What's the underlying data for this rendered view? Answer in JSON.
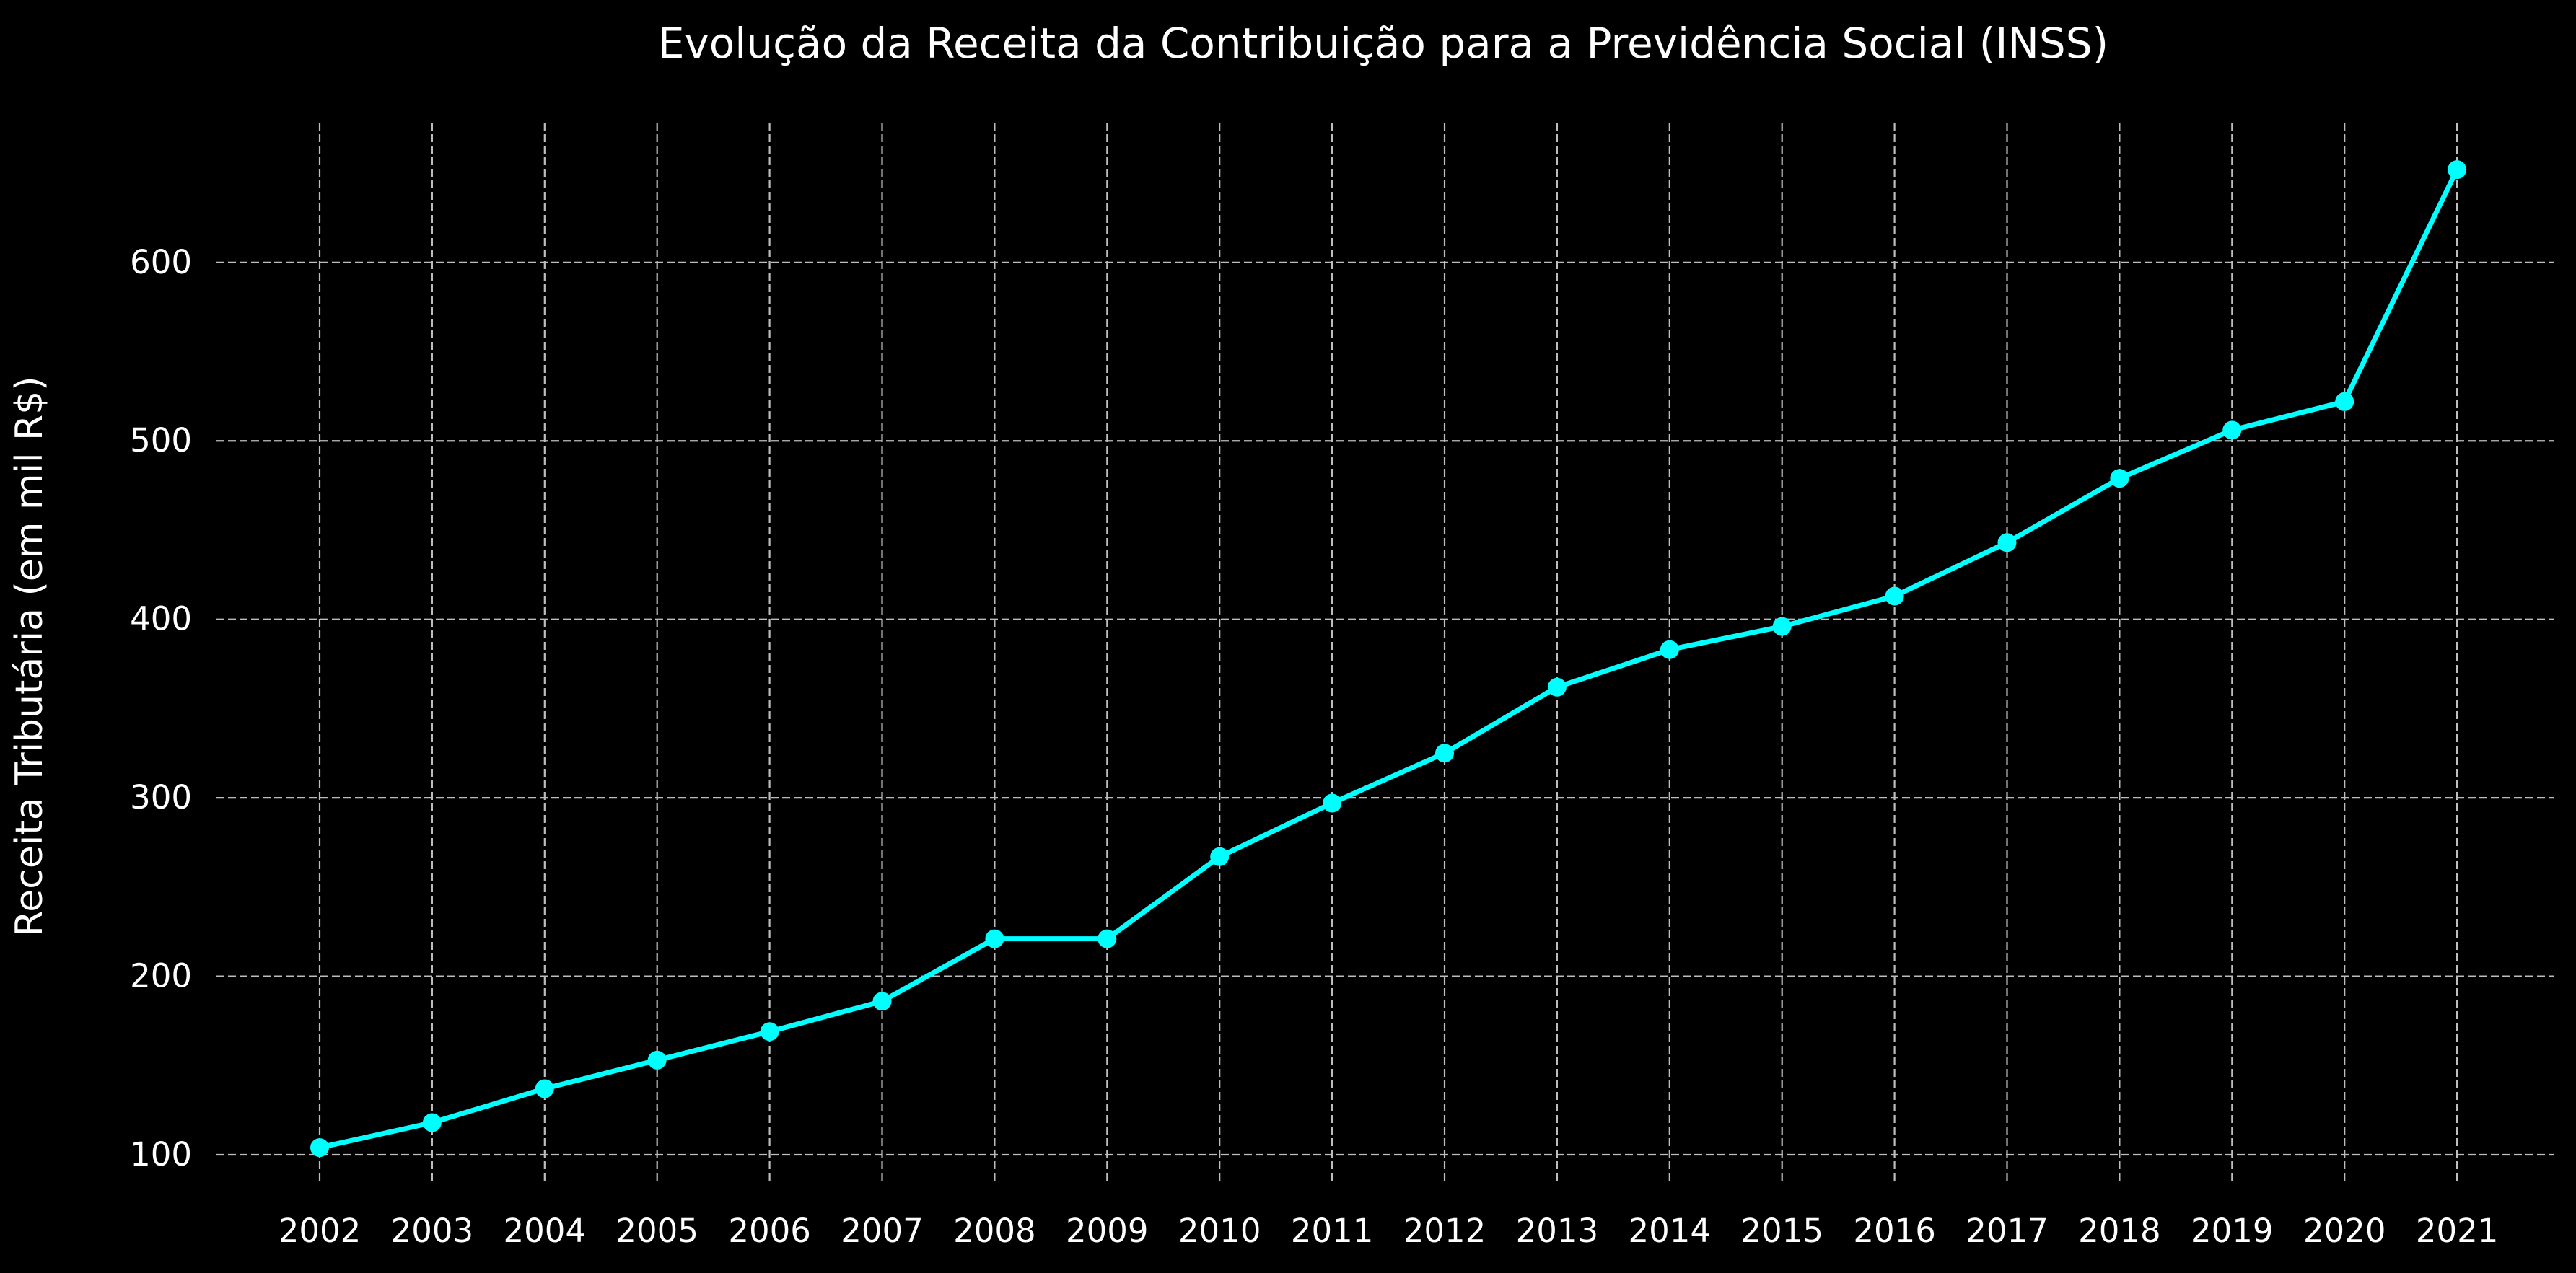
{
  "chart_data": {
    "type": "line",
    "title": "Evolução da Receita da Contribuição para a Previdência Social (INSS)",
    "xlabel": "",
    "ylabel": "Receita Tributária (em mil R$)",
    "x": [
      "2002",
      "2003",
      "2004",
      "2005",
      "2006",
      "2007",
      "2008",
      "2009",
      "2010",
      "2011",
      "2012",
      "2013",
      "2014",
      "2015",
      "2016",
      "2017",
      "2018",
      "2019",
      "2020",
      "2021"
    ],
    "yticks": [
      "100",
      "200",
      "300",
      "400",
      "500",
      "600"
    ],
    "series": [
      {
        "values": [
          104,
          118,
          137,
          153,
          169,
          186,
          221,
          221,
          267,
          297,
          325,
          362,
          383,
          396,
          413,
          443,
          479,
          506,
          522,
          652
        ],
        "color": "#00ffff"
      }
    ],
    "ylim": [
      75,
      680
    ],
    "grid": true,
    "marker": "circle"
  }
}
